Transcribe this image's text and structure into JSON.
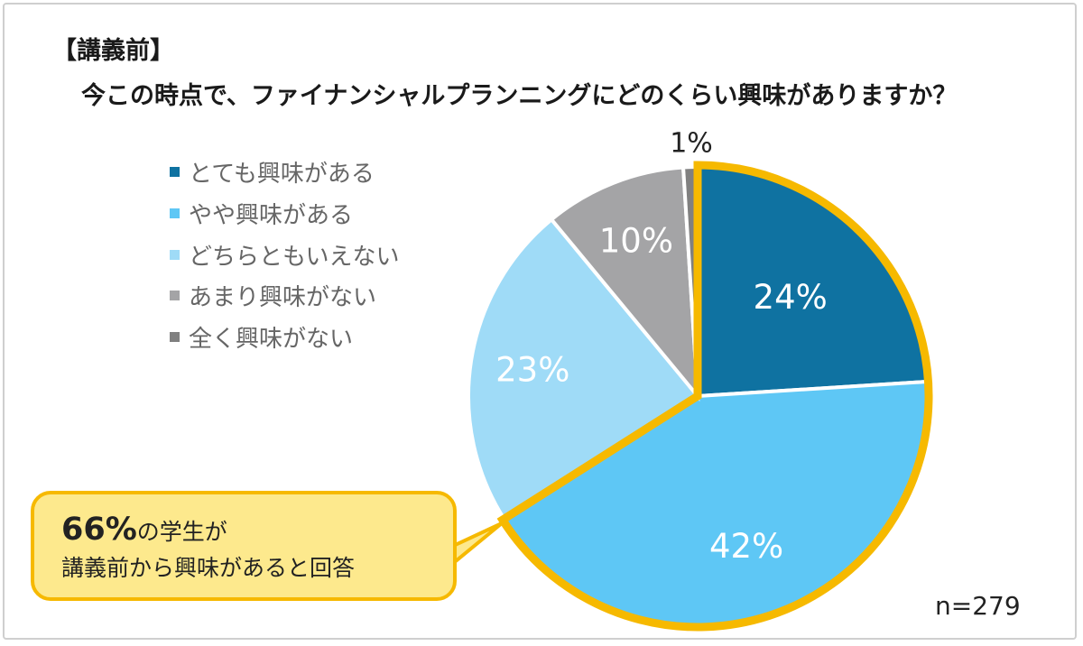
{
  "title": "【講義前】",
  "subtitle": "今この時点で、ファイナンシャルプランニングにどのくらい興味がありますか？",
  "chart_data": {
    "type": "pie",
    "categories": [
      "とても興味がある",
      "やや興味がある",
      "どちらともいえない",
      "あまり興味がない",
      "全く興味がない"
    ],
    "values": [
      24,
      42,
      23,
      10,
      1
    ],
    "value_labels": [
      "24%",
      "42%",
      "23%",
      "10%",
      "1%"
    ],
    "colors": [
      "#0f72a1",
      "#5ec7f5",
      "#9fdbf7",
      "#a4a4a6",
      "#808080"
    ],
    "highlight_color": "#f6b900",
    "highlighted": [
      "とても興味がある",
      "やや興味がある"
    ],
    "start": "12 o'clock",
    "direction": "clockwise",
    "legend_position": "left"
  },
  "callout": {
    "percent": "66%",
    "line1_rest": "の学生が",
    "line2": "講義前から興味があると回答"
  },
  "sample_size": "n=279"
}
